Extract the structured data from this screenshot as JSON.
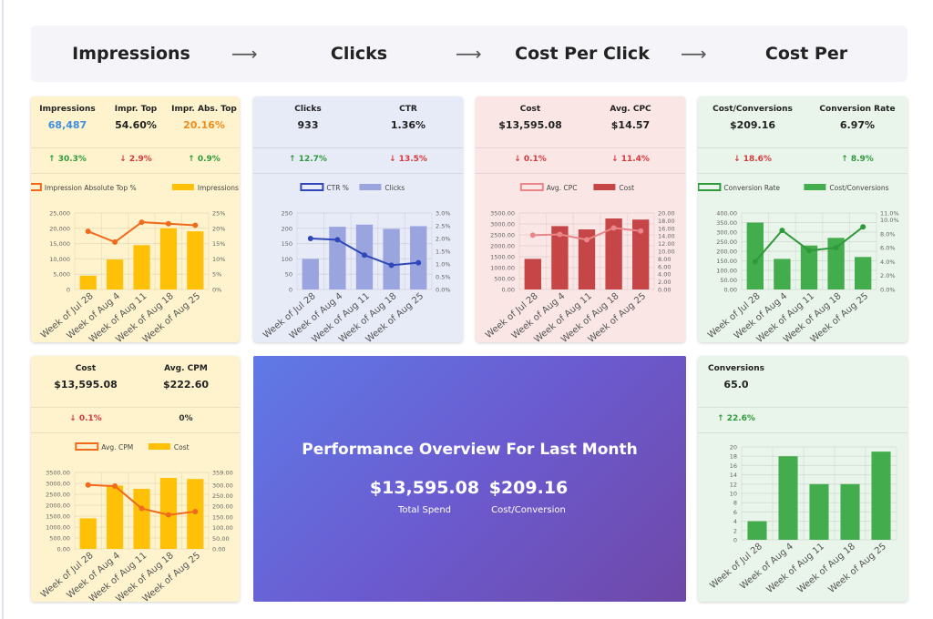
{
  "header": {
    "steps": [
      "Impressions",
      "Clicks",
      "Cost Per Click",
      "Cost Per Conversion"
    ],
    "arrow": "⟶"
  },
  "colors": {
    "blue_value": "#4a90e2",
    "orange_value": "#f08c1e",
    "up": "#2e9a3b",
    "down": "#d63a3a"
  },
  "cards": {
    "impressions": {
      "metrics": [
        {
          "label": "Impressions",
          "value": "68,487",
          "color": "#3d8fe0"
        },
        {
          "label": "Impr. Top",
          "value": "54.60%",
          "color": "#222222"
        },
        {
          "label": "Impr. Abs. Top",
          "value": "20.16%",
          "color": "#f08c1e"
        }
      ],
      "changes": [
        {
          "text": "↑ 30.3%",
          "dir": "up"
        },
        {
          "text": "↓ 2.9%",
          "dir": "down"
        },
        {
          "text": "↑ 0.9%",
          "dir": "up"
        }
      ]
    },
    "clicks": {
      "metrics": [
        {
          "label": "Clicks",
          "value": "933"
        },
        {
          "label": "CTR",
          "value": "1.36%"
        }
      ],
      "changes": [
        {
          "text": "↑ 12.7%",
          "dir": "up"
        },
        {
          "text": "↓ 13.5%",
          "dir": "down"
        }
      ]
    },
    "cost": {
      "metrics": [
        {
          "label": "Cost",
          "value": "$13,595.08"
        },
        {
          "label": "Avg. CPC",
          "value": "$14.57"
        }
      ],
      "changes": [
        {
          "text": "↓ 0.1%",
          "dir": "down"
        },
        {
          "text": "↓ 11.4%",
          "dir": "down"
        }
      ]
    },
    "cost_conv": {
      "metrics": [
        {
          "label": "Cost/Conversions",
          "value": "$209.16"
        },
        {
          "label": "Conversion Rate",
          "value": "6.97%"
        }
      ],
      "changes": [
        {
          "text": "↓ 18.6%",
          "dir": "down"
        },
        {
          "text": "↑ 8.9%",
          "dir": "up"
        }
      ]
    },
    "cpm": {
      "metrics": [
        {
          "label": "Cost",
          "value": "$13,595.08"
        },
        {
          "label": "Avg. CPM",
          "value": "$222.60"
        }
      ],
      "changes": [
        {
          "text": "↓ 0.1%",
          "dir": "down"
        },
        {
          "text": "0%",
          "dir": "neutral"
        }
      ]
    },
    "conversions": {
      "metrics": [
        {
          "label": "Conversions",
          "value": "65.0"
        }
      ],
      "changes": [
        {
          "text": "↑ 22.6%",
          "dir": "up"
        }
      ]
    }
  },
  "overview": {
    "title": "Performance Overview For Last Month",
    "spend_value": "$13,595.08",
    "spend_label": "Total Spend",
    "conv_value": "$209.16",
    "conv_label": "Cost/Conversion"
  },
  "chart_data": [
    {
      "id": "impressions",
      "type": "bar",
      "categories": [
        "Week of Jul 28",
        "Week of Aug 4",
        "Week of Aug 11",
        "Week of Aug 18",
        "Week of Aug 25"
      ],
      "series": [
        {
          "name": "Impression Absolute Top %",
          "type": "line",
          "axis": "right",
          "values": [
            19,
            15.5,
            22,
            21.5,
            21
          ],
          "color": "#f06a1e"
        },
        {
          "name": "Impressions",
          "type": "bar",
          "axis": "left",
          "values": [
            4500,
            9800,
            14500,
            20000,
            19000
          ],
          "color": "#ffc107"
        }
      ],
      "left_ticks": [
        "0",
        "5,000",
        "10,000",
        "15,000",
        "20,000",
        "25,000"
      ],
      "left_max": 25000,
      "right_ticks": [
        "0%",
        "5%",
        "10%",
        "15%",
        "20%",
        "25%"
      ],
      "right_max": 25
    },
    {
      "id": "clicks",
      "type": "bar",
      "categories": [
        "Week of Jul 28",
        "Week of Aug 4",
        "Week of Aug 11",
        "Week of Aug 18",
        "Week of Aug 25"
      ],
      "series": [
        {
          "name": "CTR %",
          "type": "line",
          "axis": "right",
          "values": [
            2.0,
            1.95,
            1.35,
            0.95,
            1.05
          ],
          "color": "#2f47b8"
        },
        {
          "name": "Clicks",
          "type": "bar",
          "axis": "left",
          "values": [
            100,
            205,
            212,
            198,
            207
          ],
          "color": "#9aa5e0"
        }
      ],
      "left_ticks": [
        "0",
        "50",
        "100",
        "150",
        "200",
        "250"
      ],
      "left_max": 250,
      "right_ticks": [
        "0.0%",
        "0.5%",
        "1.0%",
        "1.5%",
        "2.0%",
        "2.5%",
        "3.0%"
      ],
      "right_max": 3.0
    },
    {
      "id": "cost",
      "type": "bar",
      "categories": [
        "Week of Jul 28",
        "Week of Aug 4",
        "Week of Aug 11",
        "Week of Aug 18",
        "Week of Aug 25"
      ],
      "series": [
        {
          "name": "Avg. CPC",
          "type": "line",
          "axis": "right",
          "values": [
            14.2,
            14.4,
            13.0,
            16.1,
            15.3
          ],
          "color": "#e8868a"
        },
        {
          "name": "Cost",
          "type": "bar",
          "axis": "left",
          "values": [
            1400,
            2900,
            2750,
            3250,
            3200
          ],
          "color": "#c64547"
        }
      ],
      "left_ticks": [
        "0.00",
        "500.00",
        "1000.00",
        "1500.00",
        "2000.00",
        "2500.00",
        "3000.00",
        "3500.00"
      ],
      "left_max": 3500,
      "right_ticks": [
        "0.00",
        "2.00",
        "4.00",
        "6.00",
        "8.00",
        "10.00",
        "12.00",
        "14.00",
        "16.00",
        "18.00",
        "20.00"
      ],
      "right_max": 20
    },
    {
      "id": "cost_conv",
      "type": "bar",
      "categories": [
        "Week of Jul 28",
        "Week of Aug 4",
        "Week of Aug 11",
        "Week of Aug 18",
        "Week of Aug 25"
      ],
      "series": [
        {
          "name": "Conversion Rate",
          "type": "line",
          "axis": "right",
          "values": [
            4.0,
            8.5,
            5.6,
            6.0,
            9.0
          ],
          "color": "#2e9a3b"
        },
        {
          "name": "Cost/Conversions",
          "type": "bar",
          "axis": "left",
          "values": [
            350,
            160,
            230,
            270,
            170
          ],
          "color": "#43ad4e"
        }
      ],
      "left_ticks": [
        "0.00",
        "50.00",
        "100.00",
        "150.00",
        "200.00",
        "250.00",
        "300.00",
        "350.00",
        "400.00"
      ],
      "left_max": 400,
      "right_ticks": [
        "0.0%",
        "2.0%",
        "4.0%",
        "6.0%",
        "8.0%",
        "10.0%",
        "11.0%"
      ],
      "right_tick_values": [
        0,
        2,
        4,
        6,
        8,
        10,
        11
      ],
      "right_max": 11
    },
    {
      "id": "cpm",
      "type": "bar",
      "categories": [
        "Week of Jul 28",
        "Week of Aug 4",
        "Week of Aug 11",
        "Week of Aug 18",
        "Week of Aug 25"
      ],
      "series": [
        {
          "name": "Avg. CPM",
          "type": "line",
          "axis": "right",
          "values": [
            300,
            295,
            190,
            160,
            175
          ],
          "color": "#f06a1e"
        },
        {
          "name": "Cost",
          "type": "bar",
          "axis": "left",
          "values": [
            1400,
            2900,
            2750,
            3250,
            3200
          ],
          "color": "#ffc107"
        }
      ],
      "left_ticks": [
        "0.00",
        "500.00",
        "1000.00",
        "1500.00",
        "2000.00",
        "2500.00",
        "3000.00",
        "3500.00"
      ],
      "left_max": 3500,
      "right_ticks": [
        "0.00",
        "50.00",
        "100.00",
        "150.00",
        "200.00",
        "250.00",
        "300.00",
        "359.00"
      ],
      "right_tick_values": [
        0,
        50,
        100,
        150,
        200,
        250,
        300,
        359
      ],
      "right_max": 359
    },
    {
      "id": "conversions",
      "type": "bar",
      "categories": [
        "Week of Jul 28",
        "Week of Aug 4",
        "Week of Aug 11",
        "Week of Aug 18",
        "Week of Aug 25"
      ],
      "series": [
        {
          "name": "Conversions",
          "type": "bar",
          "axis": "left",
          "values": [
            4,
            18,
            12,
            12,
            19
          ],
          "color": "#43ad4e"
        }
      ],
      "left_ticks": [
        "0",
        "2",
        "4",
        "6",
        "8",
        "10",
        "12",
        "14",
        "16",
        "18",
        "20"
      ],
      "left_max": 20
    }
  ]
}
